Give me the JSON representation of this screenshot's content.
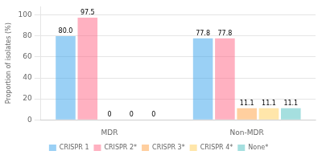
{
  "chart_data": {
    "type": "bar",
    "categories": [
      "MDR",
      "Non-MDR"
    ],
    "series": [
      {
        "name": "CRISPR 1",
        "values": [
          80.0,
          77.8
        ],
        "value_labels": [
          "80.0",
          "77.8"
        ]
      },
      {
        "name": "CRISPR 2*",
        "values": [
          97.5,
          77.8
        ],
        "value_labels": [
          "97.5",
          "77.8"
        ]
      },
      {
        "name": "CRISPR 3*",
        "values": [
          0,
          11.1
        ],
        "value_labels": [
          "0",
          "11.1"
        ]
      },
      {
        "name": "CRISPR 4*",
        "values": [
          0,
          11.1
        ],
        "value_labels": [
          "0",
          "11.1"
        ]
      },
      {
        "name": "None*",
        "values": [
          0,
          11.1
        ],
        "value_labels": [
          "0",
          "11.1"
        ]
      }
    ],
    "ylabel": "Proportion of isolates (%)",
    "ylim": [
      0,
      108
    ],
    "yticks": [
      0,
      20,
      40,
      60,
      80,
      100
    ],
    "grid": true,
    "legend": "bottom",
    "data_labels": true
  }
}
